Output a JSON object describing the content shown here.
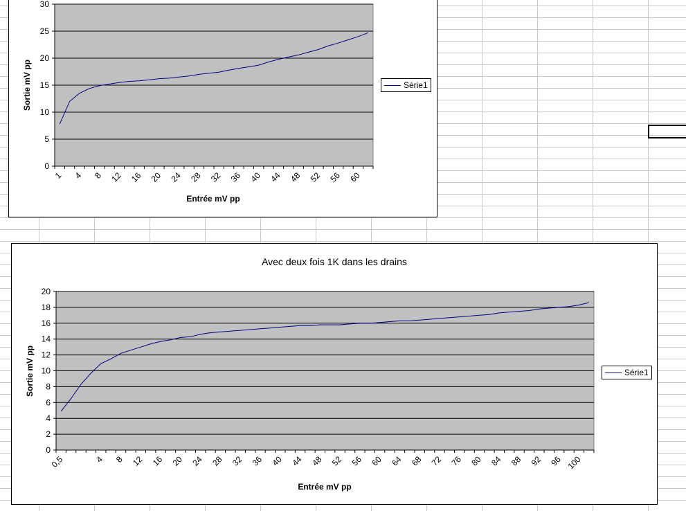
{
  "chart_data": [
    {
      "type": "line",
      "title": "",
      "xlabel": "Entrée mV pp",
      "ylabel": "Sortie mV pp",
      "ylim": [
        0,
        30
      ],
      "y_ticks": [
        0,
        5,
        10,
        15,
        20,
        25,
        30
      ],
      "grid": true,
      "legend": "right",
      "plot_color": "#c0c0c0",
      "line_color": "#00007f",
      "categories": [
        1,
        2,
        4,
        6,
        8,
        10,
        12,
        14,
        16,
        18,
        20,
        22,
        24,
        26,
        28,
        30,
        32,
        34,
        36,
        38,
        40,
        42,
        44,
        46,
        48,
        50,
        52,
        54,
        56,
        58,
        60,
        62
      ],
      "x_tick_labels": [
        "1",
        "4",
        "8",
        "12",
        "16",
        "20",
        "24",
        "28",
        "32",
        "36",
        "40",
        "44",
        "48",
        "52",
        "56",
        "60"
      ],
      "series": [
        {
          "name": "Série1",
          "values": [
            7.8,
            12.0,
            13.5,
            14.4,
            14.9,
            15.2,
            15.5,
            15.7,
            15.8,
            16.0,
            16.2,
            16.3,
            16.5,
            16.7,
            17.0,
            17.2,
            17.4,
            17.8,
            18.1,
            18.4,
            18.7,
            19.3,
            19.8,
            20.2,
            20.6,
            21.1,
            21.6,
            22.3,
            22.8,
            23.4,
            24.0,
            24.7
          ]
        }
      ]
    },
    {
      "type": "line",
      "title": "Avec deux fois 1K dans les drains",
      "xlabel": "Entrée mV pp",
      "ylabel": "Sortie mV pp",
      "ylim": [
        0,
        20
      ],
      "y_ticks": [
        0,
        2,
        4,
        6,
        8,
        10,
        12,
        14,
        16,
        18,
        20
      ],
      "grid": true,
      "legend": "right",
      "plot_color": "#c0c0c0",
      "line_color": "#00007f",
      "categories": [
        "0,5",
        "1",
        "2",
        "3",
        "4",
        "6",
        "8",
        "10",
        "12",
        "14",
        "16",
        "18",
        "20",
        "22",
        "24",
        "26",
        "28",
        "30",
        "32",
        "34",
        "36",
        "38",
        "40",
        "42",
        "44",
        "46",
        "48",
        "50",
        "52",
        "54",
        "56",
        "58",
        "60",
        "62",
        "64",
        "66",
        "68",
        "70",
        "72",
        "74",
        "76",
        "78",
        "80",
        "82",
        "84",
        "86",
        "88",
        "90",
        "92",
        "94",
        "96",
        "98",
        "100",
        "102"
      ],
      "x_tick_labels": [
        "0,5",
        "4",
        "8",
        "12",
        "16",
        "20",
        "24",
        "28",
        "32",
        "36",
        "40",
        "44",
        "48",
        "52",
        "56",
        "60",
        "64",
        "68",
        "72",
        "76",
        "80",
        "84",
        "88",
        "92",
        "96",
        "100"
      ],
      "series": [
        {
          "name": "Série1",
          "values": [
            4.9,
            6.5,
            8.3,
            9.7,
            10.9,
            11.5,
            12.2,
            12.6,
            13.0,
            13.4,
            13.7,
            13.9,
            14.2,
            14.3,
            14.6,
            14.8,
            14.9,
            15.0,
            15.1,
            15.2,
            15.3,
            15.4,
            15.5,
            15.6,
            15.7,
            15.7,
            15.8,
            15.8,
            15.8,
            15.9,
            16.0,
            16.0,
            16.1,
            16.2,
            16.3,
            16.3,
            16.4,
            16.5,
            16.6,
            16.7,
            16.8,
            16.9,
            17.0,
            17.1,
            17.3,
            17.4,
            17.5,
            17.6,
            17.8,
            17.9,
            18.0,
            18.1,
            18.3,
            18.6
          ]
        }
      ]
    }
  ]
}
